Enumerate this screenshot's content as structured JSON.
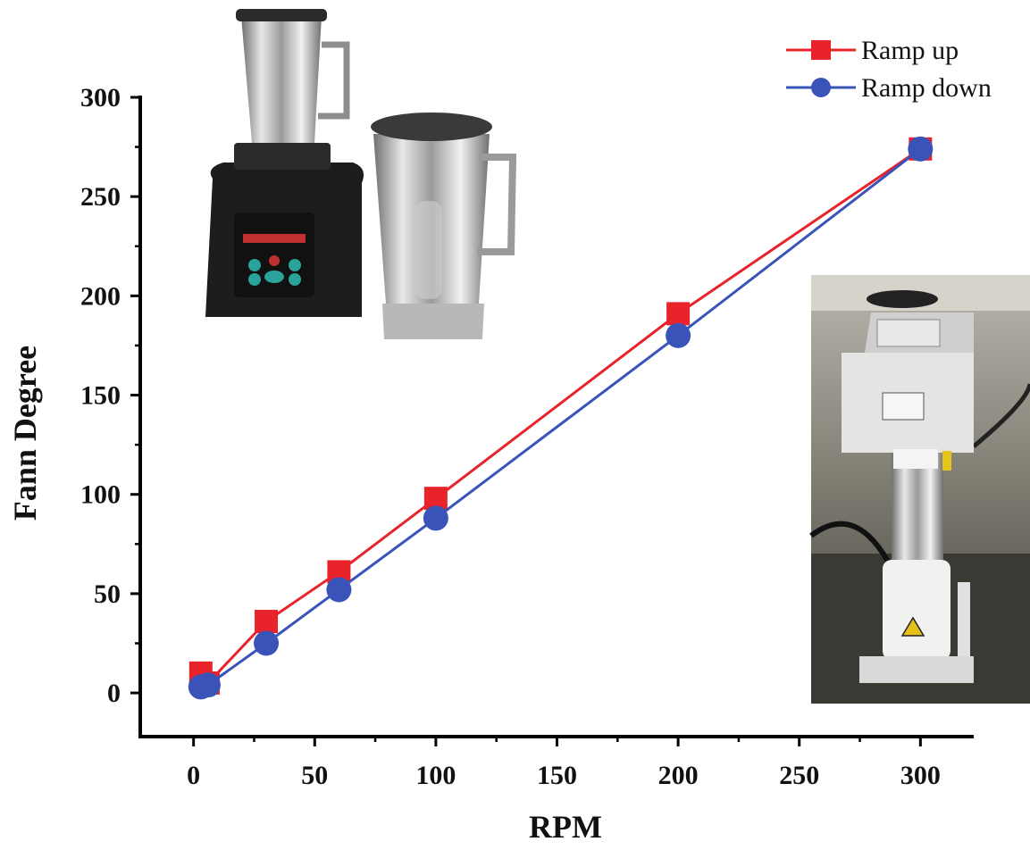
{
  "chart_data": {
    "type": "line",
    "xlabel": "RPM",
    "ylabel": "Fann Degree",
    "xlim": [
      -22,
      322
    ],
    "ylim": [
      -22,
      300
    ],
    "xticks": [
      0,
      50,
      100,
      150,
      200,
      250,
      300
    ],
    "yticks": [
      0,
      50,
      100,
      150,
      200,
      250,
      300
    ],
    "grid": false,
    "legend_position": "top-right",
    "series": [
      {
        "name": "Ramp up",
        "color": "#e8232a",
        "marker": "square",
        "x": [
          3,
          6,
          30,
          60,
          100,
          200,
          300
        ],
        "y": [
          10,
          5,
          36,
          61,
          98,
          191,
          274
        ]
      },
      {
        "name": "Ramp down",
        "color": "#3a53b8",
        "marker": "circle",
        "x": [
          3,
          6,
          30,
          60,
          100,
          200,
          300
        ],
        "y": [
          3,
          4,
          25,
          52,
          88,
          180,
          274
        ]
      }
    ],
    "inset_images": [
      "blender-photo",
      "viscometer-photo"
    ]
  }
}
